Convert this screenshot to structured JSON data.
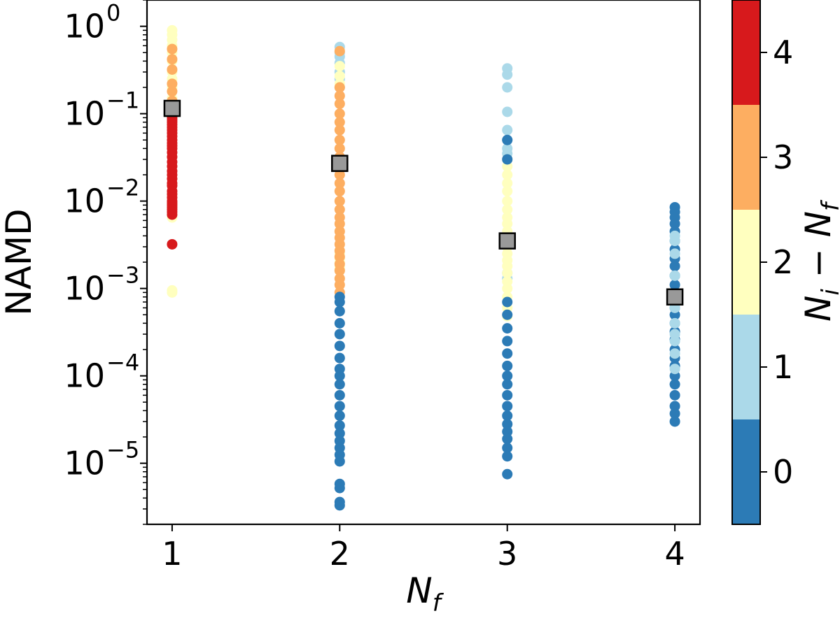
{
  "chart_data": {
    "type": "scatter",
    "xlabel": "N_f",
    "ylabel": "NAMD",
    "yscale": "log",
    "ylim": [
      2e-06,
      2.0
    ],
    "xlim": [
      0.85,
      4.15
    ],
    "x_ticks": [
      1,
      2,
      3,
      4
    ],
    "y_ticks": [
      {
        "value": 1.0,
        "base": "10",
        "exp": "0"
      },
      {
        "value": 0.1,
        "base": "10",
        "exp": "−1"
      },
      {
        "value": 0.01,
        "base": "10",
        "exp": "−2"
      },
      {
        "value": 0.001,
        "base": "10",
        "exp": "−3"
      },
      {
        "value": 0.0001,
        "base": "10",
        "exp": "−4"
      },
      {
        "value": 1e-05,
        "base": "10",
        "exp": "−5"
      }
    ],
    "colorbar": {
      "label": "N_i − N_f",
      "levels": [
        {
          "value": 0,
          "color": "#2c7bb6"
        },
        {
          "value": 1,
          "color": "#abd9e9"
        },
        {
          "value": 2,
          "color": "#ffffbf"
        },
        {
          "value": 3,
          "color": "#fdae61"
        },
        {
          "value": 4,
          "color": "#d7191c"
        }
      ]
    },
    "series": [
      {
        "x": 1,
        "points": [
          {
            "c": 2,
            "y": [
              0.9,
              0.8,
              0.7,
              0.6,
              0.5,
              0.4,
              0.3,
              0.2,
              0.25,
              0.15,
              0.012,
              0.009,
              0.007,
              0.0065,
              0.0009,
              0.00095
            ]
          },
          {
            "c": 3,
            "y": [
              0.55,
              0.42,
              0.32,
              0.22,
              0.18,
              0.14
            ]
          },
          {
            "c": 4,
            "y": [
              0.11,
              0.1,
              0.09,
              0.085,
              0.08,
              0.075,
              0.07,
              0.065,
              0.06,
              0.055,
              0.05,
              0.046,
              0.043,
              0.04,
              0.036,
              0.032,
              0.028,
              0.025,
              0.022,
              0.02,
              0.018,
              0.016,
              0.015,
              0.013,
              0.012,
              0.011,
              0.01,
              0.0095,
              0.009,
              0.0085,
              0.008,
              0.0075,
              0.007,
              0.0032
            ]
          }
        ]
      },
      {
        "x": 2,
        "points": [
          {
            "c": 1,
            "y": [
              0.58,
              0.5,
              0.45,
              0.38,
              0.3,
              0.25,
              0.2
            ]
          },
          {
            "c": 2,
            "y": [
              0.35,
              0.27,
              0.22,
              0.0025,
              0.0022,
              0.002,
              0.0018,
              0.0017,
              0.0016
            ]
          },
          {
            "c": 3,
            "y": [
              0.52,
              0.2,
              0.16,
              0.13,
              0.1,
              0.08,
              0.065,
              0.05,
              0.04,
              0.032,
              0.025,
              0.02,
              0.016,
              0.013,
              0.01,
              0.008,
              0.0065,
              0.0055,
              0.0045,
              0.0038,
              0.0032,
              0.0027,
              0.0023,
              0.0019,
              0.0016,
              0.0013,
              0.0011,
              0.0009
            ]
          },
          {
            "c": 0,
            "y": [
              0.0008,
              0.0007,
              0.00055,
              0.0004,
              0.0003,
              0.00022,
              0.00016,
              0.00012,
              0.0001,
              8e-05,
              6e-05,
              4.5e-05,
              3.5e-05,
              2.7e-05,
              2.2e-05,
              1.8e-05,
              1.5e-05,
              1.25e-05,
              1.05e-05,
              5.8e-06,
              5.2e-06,
              3.6e-06,
              3.3e-06
            ]
          }
        ]
      },
      {
        "x": 3,
        "points": [
          {
            "c": 1,
            "y": [
              0.33,
              0.28,
              0.2,
              0.105,
              0.065,
              0.05,
              0.04,
              0.035,
              0.0015,
              0.0013
            ]
          },
          {
            "c": 2,
            "y": [
              0.03,
              0.025,
              0.02,
              0.016,
              0.013,
              0.01,
              0.008,
              0.0065,
              0.0055,
              0.0045,
              0.0038,
              0.003,
              0.0025,
              0.0021,
              0.0018,
              0.0015,
              0.0012,
              0.001,
              0.0008,
              0.0006,
              0.00048
            ]
          },
          {
            "c": 0,
            "y": [
              0.05,
              0.03,
              0.0007,
              0.0005,
              0.00035,
              0.00025,
              0.00018,
              0.00013,
              0.0001,
              8e-05,
              6e-05,
              4.5e-05,
              3.5e-05,
              2.8e-05,
              2.3e-05,
              1.9e-05,
              1.5e-05,
              1.2e-05,
              7.5e-06
            ]
          }
        ]
      },
      {
        "x": 4,
        "points": [
          {
            "c": 0,
            "y": [
              0.0085,
              0.0075,
              0.0065,
              0.0055,
              0.0045,
              0.0035,
              0.0028,
              0.0022,
              0.0018,
              0.0014,
              0.0011,
              0.0009,
              0.00075,
              0.0006,
              0.0005,
              0.0004,
              0.00032,
              0.00026,
              0.0002,
              0.00016,
              0.00013,
              0.0001,
              8e-05,
              6e-05,
              4.5e-05,
              3.7e-05,
              3e-05
            ]
          },
          {
            "c": 1,
            "y": [
              0.004,
              0.0035,
              0.0025,
              0.0014,
              0.00085,
              0.0006,
              0.0004,
              0.0003,
              0.00025,
              0.00018,
              0.00012
            ]
          }
        ]
      }
    ],
    "medians": [
      {
        "x": 1,
        "y": 0.115
      },
      {
        "x": 2,
        "y": 0.027
      },
      {
        "x": 3,
        "y": 0.0035
      },
      {
        "x": 4,
        "y": 0.0008
      }
    ],
    "median_color": "#999999"
  }
}
